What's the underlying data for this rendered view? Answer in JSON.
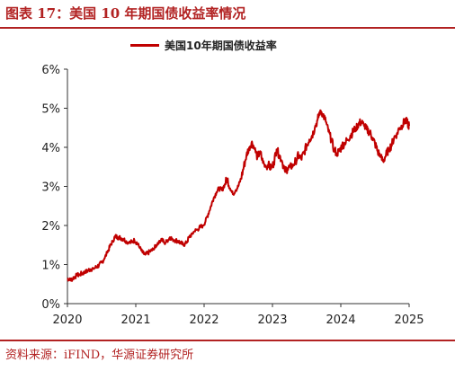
{
  "figure": {
    "title": "图表 17：美国 10 年期国债收益率情况",
    "source": "资料来源：iFIND，华源证券研究所"
  },
  "chart_data": {
    "type": "line",
    "title": "",
    "xlabel": "",
    "ylabel": "",
    "legend_position": "top-center",
    "grid": false,
    "ylim": [
      0,
      6
    ],
    "xlim": [
      2020,
      2025
    ],
    "y_ticks": [
      "0%",
      "1%",
      "2%",
      "3%",
      "4%",
      "5%",
      "6%"
    ],
    "x_ticks": [
      "2020",
      "2021",
      "2022",
      "2023",
      "2024",
      "2025"
    ],
    "series": [
      {
        "name": "美国10年期国债收益率",
        "color": "#c00000",
        "x": [
          2020.0,
          2020.03,
          2020.06,
          2020.1,
          2020.14,
          2020.18,
          2020.22,
          2020.26,
          2020.3,
          2020.34,
          2020.38,
          2020.42,
          2020.46,
          2020.5,
          2020.54,
          2020.58,
          2020.62,
          2020.66,
          2020.7,
          2020.74,
          2020.78,
          2020.82,
          2020.86,
          2020.9,
          2020.94,
          2020.98,
          2021.02,
          2021.06,
          2021.1,
          2021.14,
          2021.18,
          2021.22,
          2021.26,
          2021.3,
          2021.34,
          2021.38,
          2021.42,
          2021.46,
          2021.5,
          2021.54,
          2021.58,
          2021.62,
          2021.66,
          2021.7,
          2021.74,
          2021.78,
          2021.82,
          2021.86,
          2021.9,
          2021.94,
          2021.98,
          2022.02,
          2022.06,
          2022.1,
          2022.14,
          2022.18,
          2022.22,
          2022.26,
          2022.3,
          2022.34,
          2022.38,
          2022.42,
          2022.46,
          2022.5,
          2022.54,
          2022.58,
          2022.62,
          2022.66,
          2022.7,
          2022.74,
          2022.78,
          2022.82,
          2022.86,
          2022.9,
          2022.94,
          2022.98,
          2023.02,
          2023.06,
          2023.1,
          2023.14,
          2023.18,
          2023.22,
          2023.26,
          2023.3,
          2023.34,
          2023.38,
          2023.42,
          2023.46,
          2023.5,
          2023.54,
          2023.58,
          2023.62,
          2023.66,
          2023.7,
          2023.74,
          2023.78,
          2023.82,
          2023.86,
          2023.9,
          2023.94,
          2023.98,
          2024.02,
          2024.06,
          2024.1,
          2024.14,
          2024.18,
          2024.22,
          2024.26,
          2024.3,
          2024.34,
          2024.38,
          2024.42,
          2024.46,
          2024.5,
          2024.54,
          2024.58,
          2024.62,
          2024.66,
          2024.7,
          2024.74,
          2024.78,
          2024.82,
          2024.86,
          2024.9,
          2024.94,
          2024.98,
          2025.0
        ],
        "values": [
          0.65,
          0.6,
          0.62,
          0.68,
          0.72,
          0.75,
          0.78,
          0.8,
          0.85,
          0.88,
          0.9,
          0.93,
          0.98,
          1.05,
          1.15,
          1.3,
          1.45,
          1.6,
          1.72,
          1.7,
          1.68,
          1.65,
          1.6,
          1.55,
          1.58,
          1.62,
          1.55,
          1.42,
          1.3,
          1.25,
          1.3,
          1.35,
          1.38,
          1.5,
          1.6,
          1.65,
          1.55,
          1.6,
          1.7,
          1.65,
          1.62,
          1.6,
          1.55,
          1.5,
          1.55,
          1.7,
          1.78,
          1.85,
          1.9,
          1.95,
          2.0,
          2.1,
          2.3,
          2.5,
          2.7,
          2.85,
          2.95,
          2.9,
          3.05,
          3.2,
          2.95,
          2.8,
          2.9,
          3.0,
          3.2,
          3.5,
          3.8,
          4.0,
          4.15,
          3.95,
          3.75,
          3.9,
          3.6,
          3.5,
          3.55,
          3.45,
          3.6,
          3.95,
          3.8,
          3.65,
          3.4,
          3.45,
          3.5,
          3.55,
          3.65,
          3.8,
          3.7,
          3.85,
          4.05,
          4.2,
          4.3,
          4.5,
          4.7,
          4.95,
          4.85,
          4.65,
          4.4,
          4.2,
          3.95,
          3.85,
          3.9,
          4.05,
          4.1,
          4.2,
          4.3,
          4.4,
          4.5,
          4.6,
          4.65,
          4.55,
          4.45,
          4.4,
          4.25,
          4.1,
          3.9,
          3.75,
          3.65,
          3.8,
          3.95,
          4.05,
          4.25,
          4.35,
          4.5,
          4.55,
          4.7,
          4.6,
          4.55
        ],
        "values_note_end": "series ends near 4.4"
      }
    ]
  }
}
